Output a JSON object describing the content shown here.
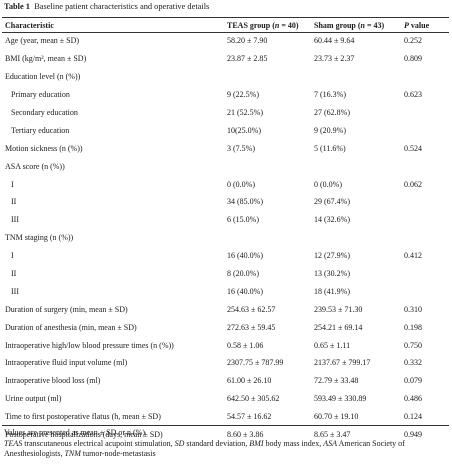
{
  "caption": {
    "label": "Table 1",
    "text": "Baseline patient characteristics and operative details"
  },
  "columns": {
    "characteristic": "Characteristic",
    "teas_prefix": "TEAS group (",
    "teas_n": "n",
    "teas_suffix": " = 40)",
    "sham_prefix": "Sham group (",
    "sham_n": "n",
    "sham_suffix": " = 43)",
    "p_value_p": "P",
    "p_value_rest": " value"
  },
  "rows": [
    {
      "label": "Age (year, mean ± SD)",
      "teas": "58.20 ± 7.90",
      "sham": "60.44 ± 9.64",
      "p": "0.252"
    },
    {
      "label": "BMI (kg/m², mean ± SD)",
      "teas": "23.87 ± 2.85",
      "sham": "23.73 ± 2.37",
      "p": "0.809"
    },
    {
      "label": "Education level (n (%))",
      "teas": "",
      "sham": "",
      "p": ""
    },
    {
      "label": "Primary education",
      "teas": "9 (22.5%)",
      "sham": "7 (16.3%)",
      "p": "0.623",
      "sub": true
    },
    {
      "label": "Secondary education",
      "teas": "21 (52.5%)",
      "sham": "27 (62.8%)",
      "p": "",
      "sub": true
    },
    {
      "label": "Tertiary education",
      "teas": "10(25.0%)",
      "sham": "9 (20.9%)",
      "p": "",
      "sub": true
    },
    {
      "label": "Motion sickness (n (%))",
      "teas": "3 (7.5%)",
      "sham": "5 (11.6%)",
      "p": "0.524"
    },
    {
      "label": "ASA score (n (%))",
      "teas": "",
      "sham": "",
      "p": ""
    },
    {
      "label": "I",
      "teas": "0 (0.0%)",
      "sham": "0 (0.0%)",
      "p": "0.062",
      "sub": true
    },
    {
      "label": "II",
      "teas": "34 (85.0%)",
      "sham": "29 (67.4%)",
      "p": "",
      "sub": true
    },
    {
      "label": "III",
      "teas": "6 (15.0%)",
      "sham": "14 (32.6%)",
      "p": "",
      "sub": true
    },
    {
      "label": "TNM staging (n (%))",
      "teas": "",
      "sham": "",
      "p": ""
    },
    {
      "label": "I",
      "teas": "16 (40.0%)",
      "sham": "12 (27.9%)",
      "p": "0.412",
      "sub": true
    },
    {
      "label": "II",
      "teas": "8 (20.0%)",
      "sham": "13 (30.2%)",
      "p": "",
      "sub": true
    },
    {
      "label": "III",
      "teas": "16 (40.0%)",
      "sham": "18 (41.9%)",
      "p": "",
      "sub": true
    },
    {
      "label": "Duration of surgery (min, mean ± SD)",
      "teas": "254.63 ± 62.57",
      "sham": "239.53 ± 71.30",
      "p": "0.310"
    },
    {
      "label": "Duration of anesthesia (min, mean ± SD)",
      "teas": "272.63 ± 59.45",
      "sham": "254.21 ± 69.14",
      "p": "0.198"
    },
    {
      "label": "Intraoperative high/low blood pressure times (n (%))",
      "teas": "0.58 ± 1.06",
      "sham": "0.65 ± 1.11",
      "p": "0.750"
    },
    {
      "label": "Intraoperative fluid input volume (ml)",
      "teas": "2307.75 ± 787.99",
      "sham": "2137.67 ± 799.17",
      "p": "0.332"
    },
    {
      "label": "Intraoperative blood loss (ml)",
      "teas": "61.00 ± 26.10",
      "sham": "72.79 ± 33.48",
      "p": "0.079"
    },
    {
      "label": "Urine output (ml)",
      "teas": "642.50 ± 305.62",
      "sham": "593.49 ± 330.89",
      "p": "0.486"
    },
    {
      "label": "Time to first postoperative flatus (h, mean ± SD)",
      "teas": "54.57 ± 16.62",
      "sham": "60.70 ± 19.10",
      "p": "0.124"
    },
    {
      "label": "Postoperative hospitalizations (days, mean ± SD)",
      "teas": "8.60 ± 3.86",
      "sham": "8.65 ± 3.47",
      "p": "0.949"
    }
  ],
  "footnote": {
    "line1": "Values are presented as mean ± SD or n (%)",
    "teas_abbr": "TEAS",
    "teas_def": " transcutaneous electrical acupoint stimulation, ",
    "sd_abbr": "SD",
    "sd_def": " standard deviation, ",
    "bmi_abbr": "BMI",
    "bmi_def": " body mass index, ",
    "asa_abbr": "ASA",
    "asa_def": " American Society of Anesthesiologists, ",
    "tnm_abbr": "TNM",
    "tnm_def": " tumor-node-metastasis"
  }
}
